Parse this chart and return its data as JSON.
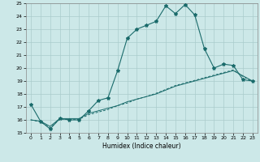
{
  "title": "",
  "xlabel": "Humidex (Indice chaleur)",
  "background_color": "#cce8e8",
  "grid_color": "#aacccc",
  "line_color": "#1a6b6b",
  "xlim": [
    -0.5,
    23.5
  ],
  "ylim": [
    15,
    25
  ],
  "yticks": [
    15,
    16,
    17,
    18,
    19,
    20,
    21,
    22,
    23,
    24,
    25
  ],
  "xticks": [
    0,
    1,
    2,
    3,
    4,
    5,
    6,
    7,
    8,
    9,
    10,
    11,
    12,
    13,
    14,
    15,
    16,
    17,
    18,
    19,
    20,
    21,
    22,
    23
  ],
  "series1_x": [
    0,
    1,
    2,
    3,
    4,
    5,
    6,
    7,
    8,
    9,
    10,
    11,
    12,
    13,
    14,
    15,
    16,
    17,
    18,
    19,
    20,
    21,
    22,
    23
  ],
  "series1_y": [
    17.2,
    15.9,
    15.3,
    16.1,
    16.0,
    16.0,
    16.7,
    17.5,
    17.7,
    19.8,
    22.3,
    23.0,
    23.3,
    23.6,
    24.8,
    24.2,
    24.9,
    24.1,
    21.5,
    20.0,
    20.3,
    20.2,
    19.1,
    19.0
  ],
  "series2_x": [
    0,
    1,
    2,
    3,
    4,
    5,
    6,
    7,
    8,
    9,
    10,
    11,
    12,
    13,
    14,
    15,
    16,
    17,
    18,
    19,
    20,
    21,
    22,
    23
  ],
  "series2_y": [
    16.0,
    15.9,
    15.5,
    16.1,
    16.1,
    16.1,
    16.5,
    16.7,
    16.9,
    17.1,
    17.4,
    17.6,
    17.8,
    18.0,
    18.3,
    18.6,
    18.8,
    19.0,
    19.2,
    19.4,
    19.6,
    19.8,
    19.4,
    19.0
  ],
  "series3_x": [
    0,
    1,
    2,
    3,
    4,
    5,
    6,
    7,
    8,
    9,
    10,
    11,
    12,
    13,
    14,
    15,
    16,
    17,
    18,
    19,
    20,
    21,
    22,
    23
  ],
  "series3_y": [
    16.0,
    15.85,
    15.4,
    16.05,
    16.05,
    16.05,
    16.4,
    16.6,
    16.8,
    17.1,
    17.3,
    17.6,
    17.8,
    18.05,
    18.35,
    18.65,
    18.85,
    19.05,
    19.25,
    19.45,
    19.65,
    19.85,
    19.35,
    18.95
  ]
}
